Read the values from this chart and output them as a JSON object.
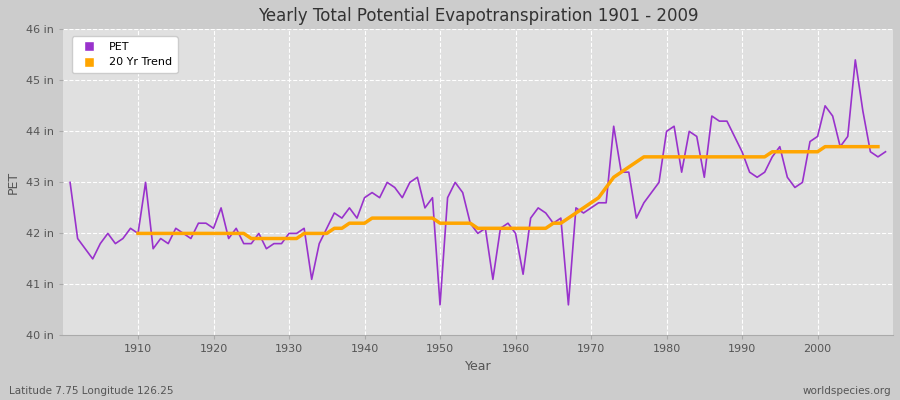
{
  "title": "Yearly Total Potential Evapotranspiration 1901 - 2009",
  "xlabel": "Year",
  "ylabel": "PET",
  "subtitle": "Latitude 7.75 Longitude 126.25",
  "watermark": "worldspecies.org",
  "pet_color": "#9932CC",
  "trend_color": "#FFA500",
  "plot_bg_color": "#e0e0e0",
  "fig_bg_color": "#cccccc",
  "ylim": [
    40,
    46
  ],
  "yticks": [
    40,
    41,
    42,
    43,
    44,
    45,
    46
  ],
  "ytick_labels": [
    "40 in",
    "41 in",
    "42 in",
    "43 in",
    "44 in",
    "45 in",
    "46 in"
  ],
  "xticks": [
    1910,
    1920,
    1930,
    1940,
    1950,
    1960,
    1970,
    1980,
    1990,
    2000
  ],
  "years": [
    1901,
    1902,
    1903,
    1904,
    1905,
    1906,
    1907,
    1908,
    1909,
    1910,
    1911,
    1912,
    1913,
    1914,
    1915,
    1916,
    1917,
    1918,
    1919,
    1920,
    1921,
    1922,
    1923,
    1924,
    1925,
    1926,
    1927,
    1928,
    1929,
    1930,
    1931,
    1932,
    1933,
    1934,
    1935,
    1936,
    1937,
    1938,
    1939,
    1940,
    1941,
    1942,
    1943,
    1944,
    1945,
    1946,
    1947,
    1948,
    1949,
    1950,
    1951,
    1952,
    1953,
    1954,
    1955,
    1956,
    1957,
    1958,
    1959,
    1960,
    1961,
    1962,
    1963,
    1964,
    1965,
    1966,
    1967,
    1968,
    1969,
    1970,
    1971,
    1972,
    1973,
    1974,
    1975,
    1976,
    1977,
    1978,
    1979,
    1980,
    1981,
    1982,
    1983,
    1984,
    1985,
    1986,
    1987,
    1988,
    1989,
    1990,
    1991,
    1992,
    1993,
    1994,
    1995,
    1996,
    1997,
    1998,
    1999,
    2000,
    2001,
    2002,
    2003,
    2004,
    2005,
    2006,
    2007,
    2008,
    2009
  ],
  "pet_values": [
    43.0,
    41.9,
    41.7,
    41.5,
    41.8,
    42.0,
    41.8,
    41.9,
    42.1,
    42.0,
    43.0,
    41.7,
    41.9,
    41.8,
    42.1,
    42.0,
    41.9,
    42.2,
    42.2,
    42.1,
    42.5,
    41.9,
    42.1,
    41.8,
    41.8,
    42.0,
    41.7,
    41.8,
    41.8,
    42.0,
    42.0,
    42.1,
    41.1,
    41.8,
    42.1,
    42.4,
    42.3,
    42.5,
    42.3,
    42.7,
    42.8,
    42.7,
    43.0,
    42.9,
    42.7,
    43.0,
    43.1,
    42.5,
    42.7,
    40.6,
    42.7,
    43.0,
    42.8,
    42.2,
    42.0,
    42.1,
    41.1,
    42.1,
    42.2,
    42.0,
    41.2,
    42.3,
    42.5,
    42.4,
    42.2,
    42.3,
    40.6,
    42.5,
    42.4,
    42.5,
    42.6,
    42.6,
    44.1,
    43.2,
    43.2,
    42.3,
    42.6,
    42.8,
    43.0,
    44.0,
    44.1,
    43.2,
    44.0,
    43.9,
    43.1,
    44.3,
    44.2,
    44.2,
    43.9,
    43.6,
    43.2,
    43.1,
    43.2,
    43.5,
    43.7,
    43.1,
    42.9,
    43.0,
    43.8,
    43.9,
    44.5,
    44.3,
    43.7,
    43.9,
    45.4,
    44.4,
    43.6,
    43.5,
    43.6
  ],
  "trend_values": [
    null,
    null,
    null,
    null,
    null,
    null,
    null,
    null,
    null,
    42.0,
    42.0,
    42.0,
    42.0,
    42.0,
    42.0,
    42.0,
    42.0,
    42.0,
    42.0,
    42.0,
    42.0,
    42.0,
    42.0,
    42.0,
    41.9,
    41.9,
    41.9,
    41.9,
    41.9,
    41.9,
    41.9,
    42.0,
    42.0,
    42.0,
    42.0,
    42.1,
    42.1,
    42.2,
    42.2,
    42.2,
    42.3,
    42.3,
    42.3,
    42.3,
    42.3,
    42.3,
    42.3,
    42.3,
    42.3,
    42.2,
    42.2,
    42.2,
    42.2,
    42.2,
    42.1,
    42.1,
    42.1,
    42.1,
    42.1,
    42.1,
    42.1,
    42.1,
    42.1,
    42.1,
    42.2,
    42.2,
    42.3,
    42.4,
    42.5,
    42.6,
    42.7,
    42.9,
    43.1,
    43.2,
    43.3,
    43.4,
    43.5,
    43.5,
    43.5,
    43.5,
    43.5,
    43.5,
    43.5,
    43.5,
    43.5,
    43.5,
    43.5,
    43.5,
    43.5,
    43.5,
    43.5,
    43.5,
    43.5,
    43.6,
    43.6,
    43.6,
    43.6,
    43.6,
    43.6,
    43.6,
    43.7,
    43.7,
    43.7,
    43.7,
    43.7,
    43.7,
    43.7,
    43.7,
    null
  ]
}
